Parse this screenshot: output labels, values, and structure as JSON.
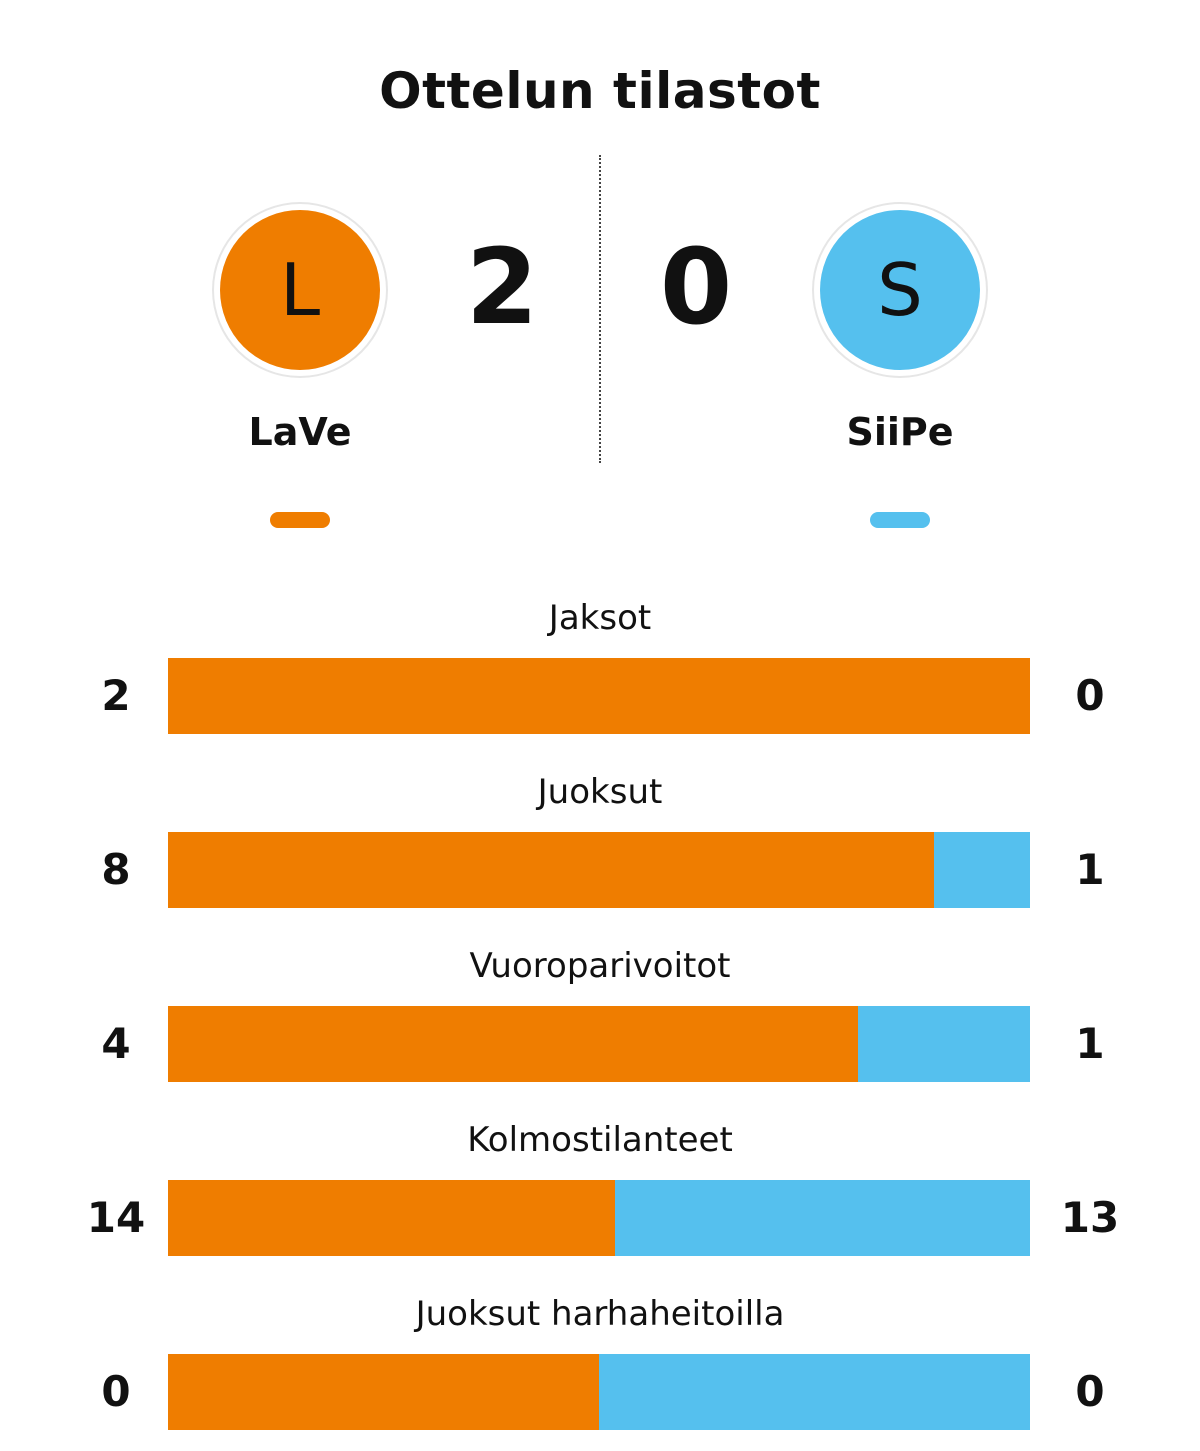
{
  "title": "Ottelun tilastot",
  "colors": {
    "home": "#ef7d00",
    "away": "#55c0ee"
  },
  "home": {
    "name": "LaVe",
    "initial": "L",
    "score": "2"
  },
  "away": {
    "name": "SiiPe",
    "initial": "S",
    "score": "0"
  },
  "chart_data": {
    "type": "bar",
    "orientation": "horizontal-stacked-share",
    "categories": [
      "Jaksot",
      "Juoksut",
      "Vuoroparivoitot",
      "Kolmostilanteet",
      "Juoksut harhaheitoilla"
    ],
    "series": [
      {
        "name": "LaVe",
        "values": [
          2,
          8,
          4,
          14,
          0
        ]
      },
      {
        "name": "SiiPe",
        "values": [
          0,
          1,
          1,
          13,
          0
        ]
      }
    ],
    "stats": [
      {
        "label": "Jaksot",
        "home": "2",
        "away": "0",
        "home_share": 1.0
      },
      {
        "label": "Juoksut",
        "home": "8",
        "away": "1",
        "home_share": 0.889
      },
      {
        "label": "Vuoroparivoitot",
        "home": "4",
        "away": "1",
        "home_share": 0.8
      },
      {
        "label": "Kolmostilanteet",
        "home": "14",
        "away": "13",
        "home_share": 0.519
      },
      {
        "label": "Juoksut harhaheitoilla",
        "home": "0",
        "away": "0",
        "home_share": 0.5
      }
    ]
  }
}
